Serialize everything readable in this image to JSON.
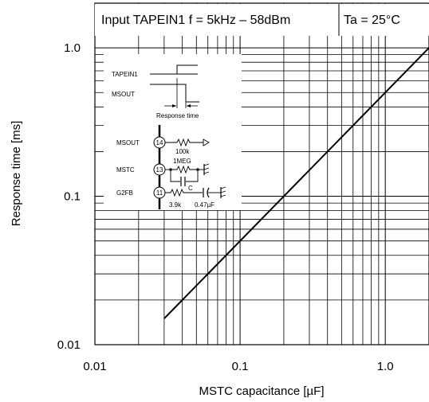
{
  "chart_data": {
    "type": "line",
    "title": "Input TAPEIN1 f = 5kHz – 58dBm",
    "condition": "Ta = 25°C",
    "xlabel": "MSTC capacitance [µF]",
    "ylabel": "Response time [ms]",
    "x_scale": "log",
    "y_scale": "log",
    "xlim": [
      0.01,
      2
    ],
    "ylim": [
      0.01,
      2
    ],
    "x_ticks": [
      "0.01",
      "0.1",
      "1.0"
    ],
    "y_ticks": [
      "0.01",
      "0.1",
      "1.0"
    ],
    "grid": true,
    "series": [
      {
        "x": [
          0.03,
          2.0
        ],
        "y": [
          0.015,
          1.0
        ]
      }
    ]
  },
  "inset": {
    "timing": {
      "signal1": "TAPEIN1",
      "signal2": "MSOUT",
      "caption": "Response time"
    },
    "circuit": {
      "pins": [
        {
          "name": "MSOUT",
          "number": "14",
          "component": "100k"
        },
        {
          "name": "MSTC",
          "number": "13",
          "component": "1MEG",
          "extra": "C"
        },
        {
          "name": "G2FB",
          "number": "11",
          "component": "3.9k",
          "extra": "0.47µF"
        }
      ]
    }
  }
}
